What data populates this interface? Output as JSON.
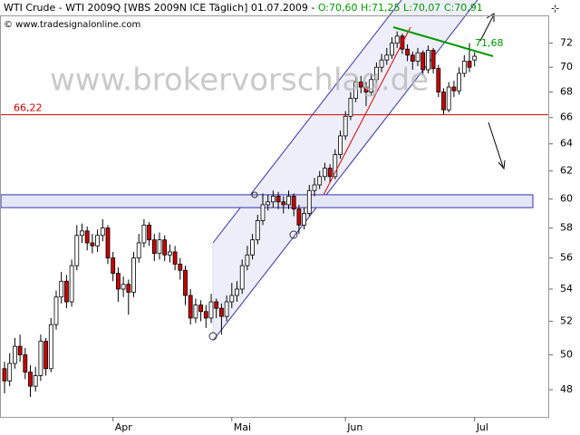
{
  "chart_data": {
    "type": "candlestick",
    "title": "WTI Crude - WTI 2009Q [WBS 2009N ICE  Täglich] 01.07.2009",
    "ohlc_labels": [
      "O:70,60",
      "H:71,25",
      "L:70,07",
      "C:70,91"
    ],
    "source": "© www.tradesignalonline.com",
    "watermark": "www.brokervorschlag.de",
    "log_scale": true,
    "ylim": [
      46.5,
      74.3
    ],
    "yticks": [
      48,
      50,
      52,
      54,
      56,
      58,
      60,
      62,
      64,
      66,
      68,
      70,
      72
    ],
    "up_color": "#ffffff",
    "down_color": "#cc0000",
    "categories": [
      null,
      null,
      null,
      null,
      null,
      null,
      null,
      null,
      null,
      null,
      null,
      null,
      null,
      null,
      null,
      null,
      null,
      null,
      null,
      null,
      null,
      "Apr",
      null,
      null,
      null,
      null,
      null,
      null,
      null,
      null,
      null,
      null,
      null,
      null,
      null,
      null,
      null,
      null,
      null,
      null,
      null,
      null,
      null,
      null,
      "Mai",
      null,
      null,
      null,
      null,
      null,
      null,
      null,
      null,
      null,
      null,
      null,
      null,
      null,
      null,
      null,
      null,
      null,
      null,
      null,
      null,
      null,
      "Jun",
      null,
      null,
      null,
      null,
      null,
      null,
      null,
      null,
      null,
      null,
      null,
      null,
      null,
      null,
      null,
      null,
      null,
      null,
      null,
      null,
      null,
      null,
      null,
      null,
      "Jul"
    ],
    "open": [
      49.2,
      48.5,
      49.5,
      50.5,
      50.0,
      49.0,
      48.2,
      48.8,
      50.8,
      49.2,
      51.8,
      53.5,
      54.5,
      53.2,
      55.5,
      57.5,
      57.8,
      57.0,
      56.8,
      57.5,
      58.0,
      56.0,
      55.0,
      54.0,
      54.3,
      53.8,
      56.0,
      57.0,
      58.2,
      57.2,
      56.3,
      57.2,
      56.2,
      56.4,
      55.6,
      55.2,
      53.6,
      52.2,
      53.0,
      52.6,
      52.2,
      53.2,
      52.8,
      52.3,
      53.2,
      53.6,
      54.0,
      55.5,
      56.2,
      57.2,
      58.5,
      59.6,
      59.8,
      60.2,
      59.8,
      59.6,
      60.2,
      59.3,
      58.2,
      59.0,
      60.6,
      61.0,
      61.6,
      62.2,
      61.6,
      63.2,
      64.6,
      66.1,
      67.5,
      68.8,
      68.4,
      68.0,
      69.0,
      70.0,
      70.6,
      71.0,
      72.0,
      72.6,
      71.5,
      71.0,
      70.5,
      71.2,
      69.8,
      71.4,
      69.9,
      68.0,
      66.6,
      68.4,
      68.1,
      69.5,
      70.5,
      70.6
    ],
    "high": [
      49.6,
      50.1,
      51.0,
      51.2,
      50.4,
      49.4,
      49.3,
      51.2,
      51.0,
      52.2,
      53.9,
      55.1,
      54.9,
      55.9,
      58.2,
      58.3,
      58.1,
      57.6,
      57.9,
      58.6,
      58.2,
      56.4,
      55.4,
      54.8,
      54.6,
      56.4,
      57.6,
      58.6,
      58.4,
      57.6,
      57.7,
      57.5,
      56.9,
      56.8,
      56.0,
      55.5,
      54.0,
      53.4,
      53.3,
      53.0,
      53.7,
      53.4,
      53.1,
      53.6,
      54.4,
      54.5,
      55.9,
      56.8,
      57.6,
      58.9,
      60.4,
      60.3,
      60.6,
      60.5,
      60.2,
      60.6,
      60.4,
      59.6,
      59.4,
      61.0,
      61.5,
      62.0,
      62.6,
      62.5,
      63.6,
      65.0,
      66.5,
      68.0,
      69.2,
      69.3,
      68.8,
      69.5,
      70.4,
      71.1,
      71.6,
      72.5,
      73.0,
      72.8,
      71.9,
      71.3,
      71.6,
      71.4,
      71.8,
      71.6,
      70.2,
      68.3,
      68.8,
      68.9,
      70.0,
      71.0,
      72.0,
      71.25
    ],
    "low": [
      47.8,
      48.2,
      49.2,
      49.6,
      48.6,
      47.6,
      47.9,
      48.5,
      48.8,
      49.0,
      51.5,
      53.1,
      52.8,
      52.9,
      55.2,
      57.0,
      56.5,
      56.3,
      56.4,
      57.1,
      55.6,
      54.5,
      53.2,
      53.5,
      52.4,
      53.5,
      55.7,
      56.7,
      56.8,
      55.8,
      55.9,
      55.8,
      55.7,
      55.2,
      54.6,
      53.0,
      51.8,
      51.9,
      52.0,
      51.6,
      51.9,
      52.2,
      51.2,
      52.0,
      52.8,
      53.2,
      53.7,
      55.2,
      55.9,
      56.9,
      58.2,
      59.2,
      59.4,
      59.3,
      59.0,
      59.3,
      58.8,
      57.6,
      57.9,
      58.8,
      60.2,
      60.7,
      61.3,
      61.2,
      61.4,
      62.9,
      64.3,
      65.8,
      67.2,
      67.9,
      66.9,
      67.7,
      68.7,
      69.6,
      70.2,
      70.7,
      71.6,
      71.1,
      70.5,
      69.8,
      70.1,
      69.4,
      69.5,
      69.5,
      67.6,
      66.2,
      66.4,
      67.6,
      67.8,
      69.2,
      69.6,
      70.07
    ],
    "close": [
      48.5,
      49.5,
      50.5,
      50.0,
      49.0,
      48.2,
      48.8,
      50.8,
      49.2,
      51.8,
      53.5,
      54.5,
      53.2,
      55.5,
      57.5,
      57.8,
      57.0,
      56.8,
      57.5,
      58.0,
      56.0,
      55.0,
      54.0,
      54.3,
      53.8,
      56.0,
      57.0,
      58.2,
      57.2,
      56.3,
      57.2,
      56.2,
      56.4,
      55.6,
      55.2,
      53.6,
      52.2,
      53.0,
      52.6,
      52.2,
      53.2,
      52.8,
      52.3,
      53.2,
      53.6,
      54.0,
      55.5,
      56.2,
      57.2,
      58.5,
      59.6,
      59.8,
      60.2,
      59.8,
      59.6,
      60.2,
      59.3,
      58.2,
      59.0,
      60.6,
      61.0,
      61.6,
      62.2,
      61.6,
      63.2,
      64.6,
      66.1,
      67.5,
      68.8,
      68.4,
      68.0,
      69.0,
      70.0,
      70.6,
      71.0,
      72.0,
      72.6,
      71.5,
      71.0,
      70.5,
      71.2,
      69.8,
      71.4,
      69.9,
      68.0,
      66.6,
      68.4,
      68.1,
      69.5,
      70.5,
      70.0,
      70.91
    ],
    "hline": {
      "value": 66.22,
      "label": "66,22",
      "color": "#cc0000"
    },
    "zone": {
      "range": [
        59.4,
        60.3
      ],
      "color": "#e4e6f6"
    },
    "trendline_label": "71,68"
  }
}
